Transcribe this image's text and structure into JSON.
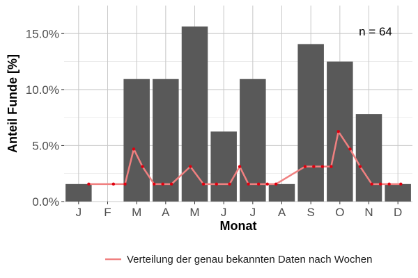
{
  "chart_data": {
    "type": "bar",
    "title": "",
    "xlabel": "Monat",
    "ylabel": "Anteil Funde [%]",
    "categories": [
      "J",
      "F",
      "M",
      "A",
      "M",
      "J",
      "J",
      "A",
      "S",
      "O",
      "N",
      "D"
    ],
    "values": [
      1.5625,
      0,
      10.9375,
      10.9375,
      15.625,
      6.25,
      10.9375,
      1.5625,
      14.0625,
      12.5,
      7.8125,
      1.5625
    ],
    "ylim": [
      0,
      17.5
    ],
    "yticks": [
      0,
      5,
      10,
      15
    ],
    "ytick_labels": [
      "0.0%",
      "5.0%",
      "10.0%",
      "15.0%"
    ],
    "grid": true,
    "annotation": "n = 64",
    "colors": {
      "bars": "#595959",
      "line": "#f08080",
      "points": "#e0000f",
      "grid": "#c8c8c8"
    },
    "line_series": {
      "name": "Verteilung der genau bekannten Daten nach Wochen",
      "x": [
        1.35,
        2.2,
        2.6,
        2.9,
        3.2,
        3.6,
        3.9,
        4.2,
        4.85,
        5.3,
        5.75,
        6.2,
        6.55,
        6.85,
        7.2,
        7.5,
        7.8,
        8.8,
        9.1,
        9.4,
        9.7,
        9.95,
        10.35,
        10.7,
        11.1,
        11.4,
        11.7,
        12.1
      ],
      "y": [
        1.5625,
        1.5625,
        1.5625,
        4.6875,
        3.125,
        1.5625,
        1.5625,
        1.5625,
        3.125,
        1.5625,
        1.5625,
        1.5625,
        3.125,
        1.5625,
        1.5625,
        1.5625,
        1.5625,
        3.125,
        3.125,
        3.125,
        3.125,
        6.25,
        4.6875,
        3.125,
        1.5625,
        1.5625,
        1.5625,
        1.5625
      ]
    },
    "legend": {
      "position": "bottom"
    }
  }
}
